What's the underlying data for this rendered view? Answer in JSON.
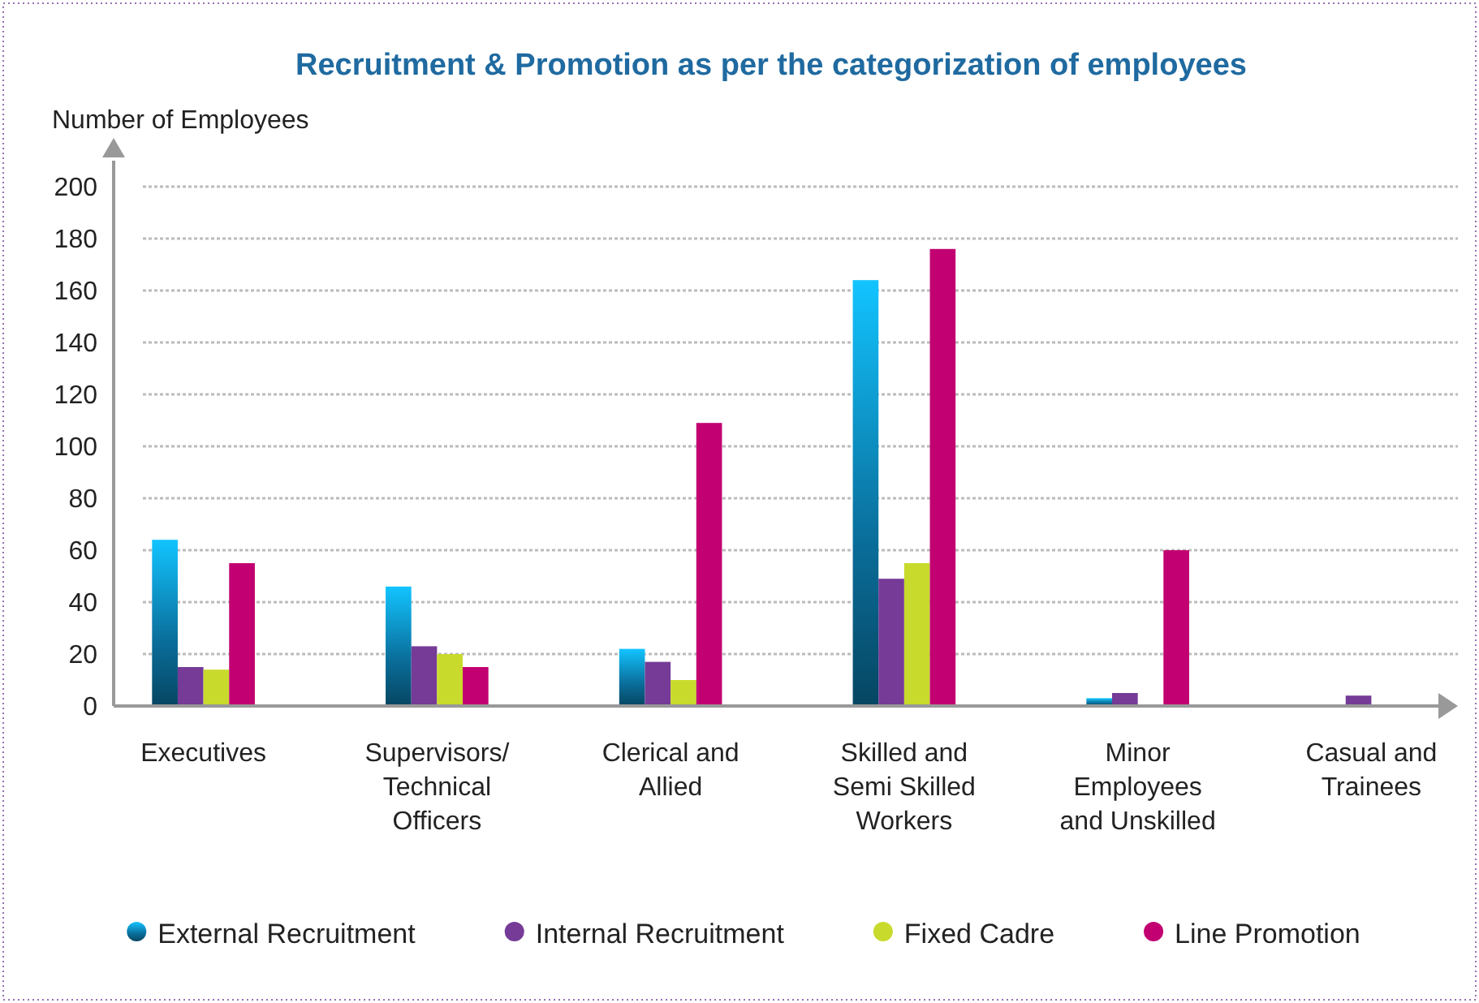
{
  "chart_data": {
    "type": "bar",
    "title": "Recruitment & Promotion as per the categorization of employees",
    "ylabel": "Number of Employees",
    "categories": [
      "Executives",
      "Supervisors/ Technical Officers",
      "Clerical and Allied",
      "Skilled and Semi Skilled Workers",
      "Minor Employees and Unskilled",
      "Casual and Trainees"
    ],
    "series": [
      {
        "name": "External Recruitment",
        "color": "#0a6f9c",
        "values": [
          64,
          46,
          22,
          164,
          3,
          0
        ]
      },
      {
        "name": "Internal Recruitment",
        "color": "#753b97",
        "values": [
          15,
          23,
          17,
          49,
          5,
          4
        ]
      },
      {
        "name": "Fixed Cadre",
        "color": "#c8da2c",
        "values": [
          14,
          20,
          10,
          55,
          0,
          0
        ]
      },
      {
        "name": "Line Promotion",
        "color": "#c20071",
        "values": [
          55,
          15,
          109,
          176,
          60,
          0
        ]
      }
    ],
    "ylim": [
      0,
      210
    ],
    "yticks": [
      0,
      20,
      40,
      60,
      80,
      100,
      120,
      140,
      160,
      180,
      200
    ],
    "grid": "y",
    "legend": "bottom"
  }
}
